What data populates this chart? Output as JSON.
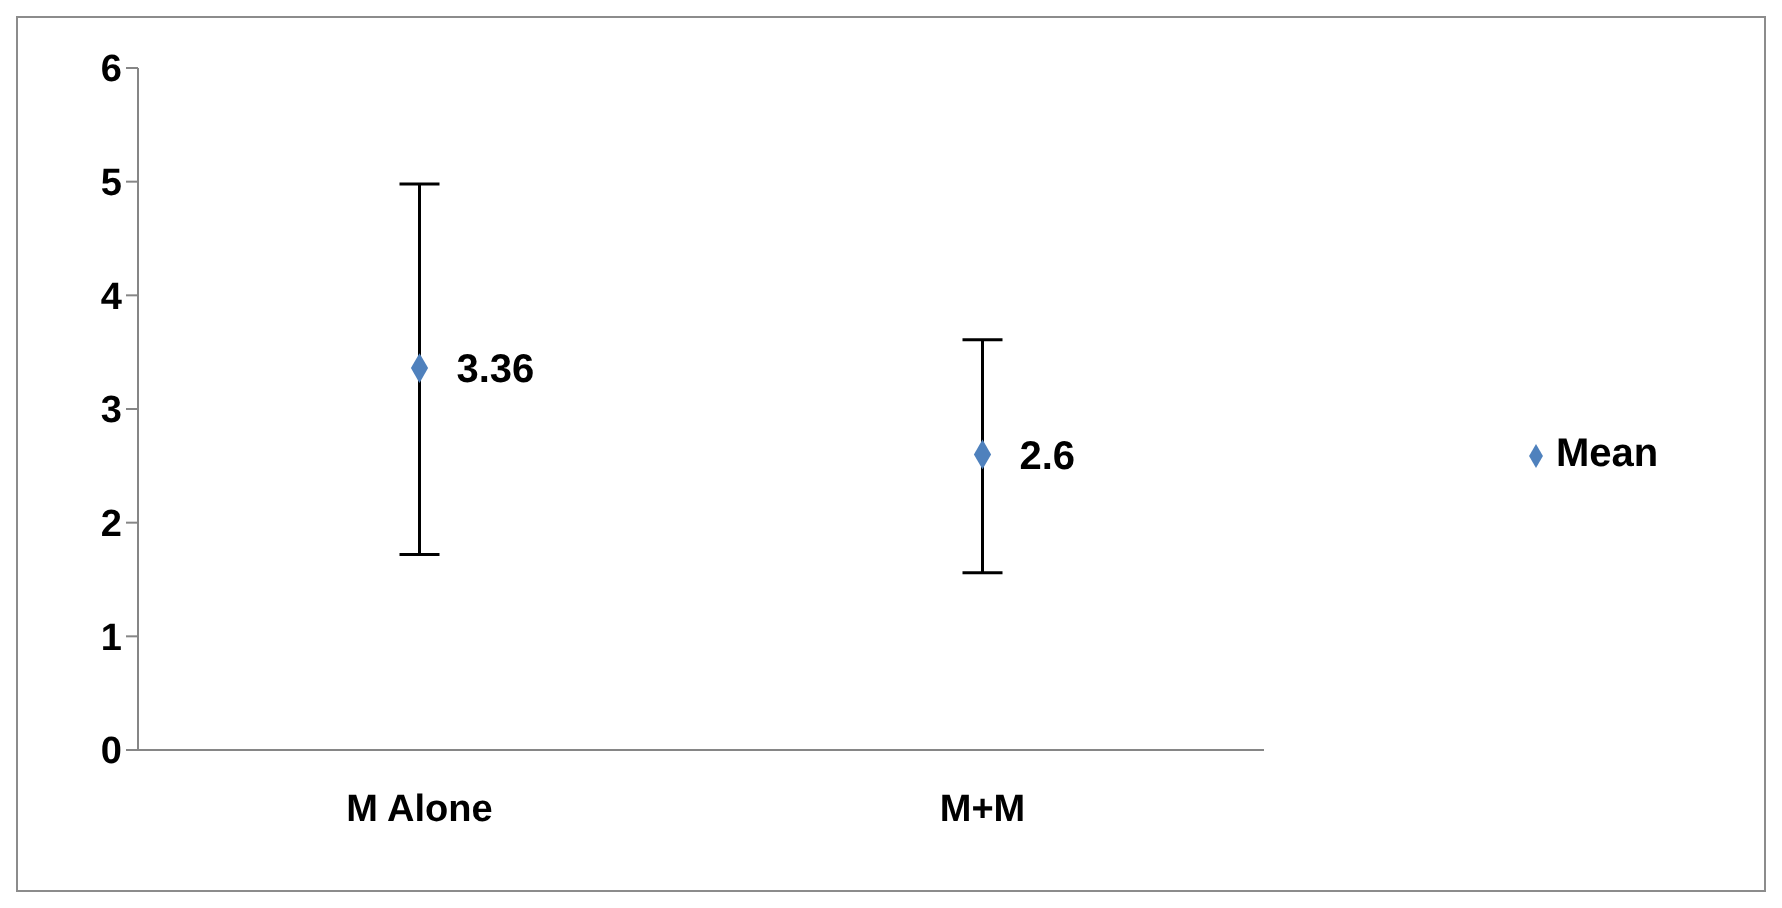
{
  "chart_data": {
    "type": "scatter",
    "categories": [
      "M Alone",
      "M+M"
    ],
    "series": [
      {
        "name": "Mean",
        "color": "#4f81bd",
        "values": [
          3.36,
          2.6
        ],
        "errors": [
          [
            1.72,
            4.98
          ],
          [
            1.56,
            3.61
          ]
        ]
      }
    ],
    "ylim": [
      0,
      6
    ],
    "yticks": [
      0,
      1,
      2,
      3,
      4,
      5,
      6
    ],
    "grid": false,
    "legend": "right",
    "marker": "diamond",
    "data_labels": true
  }
}
